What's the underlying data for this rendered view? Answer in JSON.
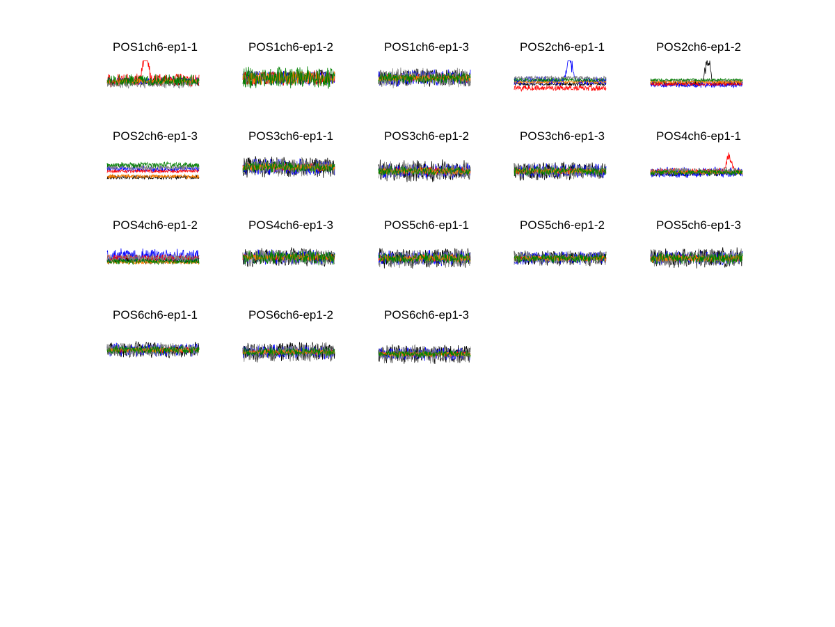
{
  "chart_data": {
    "type": "line",
    "series_colors": [
      "#000000",
      "#0000ff",
      "#ff0000",
      "#808080",
      "#ff8000",
      "#008000"
    ],
    "axes_visible": false,
    "grid": false,
    "legend": "none",
    "panels": [
      {
        "title": "POS1ch6-ep1-1",
        "baselines": [
          0.55,
          0.52,
          0.5,
          0.58,
          0.53,
          0.5
        ],
        "noise": [
          0.12,
          0.1,
          0.18,
          0.14,
          0.06,
          0.16
        ],
        "spike": {
          "series": 2,
          "at": 0.42,
          "height": 0.9
        }
      },
      {
        "title": "POS1ch6-ep1-2",
        "baselines": [
          0.45,
          0.45,
          0.45,
          0.45,
          0.45,
          0.45
        ],
        "noise": [
          0.22,
          0.2,
          0.2,
          0.2,
          0.2,
          0.3
        ],
        "spike": null
      },
      {
        "title": "POS1ch6-ep1-3",
        "baselines": [
          0.45,
          0.45,
          0.45,
          0.45,
          0.45,
          0.45
        ],
        "noise": [
          0.25,
          0.22,
          0.12,
          0.28,
          0.1,
          0.15
        ],
        "spike": null
      },
      {
        "title": "POS2ch6-ep1-1",
        "baselines": [
          0.6,
          0.52,
          0.7,
          0.45,
          0.55,
          0.5
        ],
        "noise": [
          0.05,
          0.12,
          0.08,
          0.06,
          0.04,
          0.05
        ],
        "spike": {
          "series": 1,
          "at": 0.6,
          "height": 0.8
        }
      },
      {
        "title": "POS2ch6-ep1-2",
        "baselines": [
          0.58,
          0.62,
          0.6,
          0.52,
          0.55,
          0.5
        ],
        "noise": [
          0.08,
          0.08,
          0.05,
          0.05,
          0.04,
          0.04
        ],
        "spike": {
          "series": 0,
          "at": 0.62,
          "height": 0.85
        }
      },
      {
        "title": "POS2ch6-ep1-3",
        "baselines": [
          0.7,
          0.5,
          0.55,
          0.45,
          0.68,
          0.4
        ],
        "noise": [
          0.06,
          0.08,
          0.05,
          0.1,
          0.06,
          0.08
        ],
        "spike": null
      },
      {
        "title": "POS3ch6-ep1-1",
        "baselines": [
          0.45,
          0.45,
          0.45,
          0.45,
          0.45,
          0.45
        ],
        "noise": [
          0.3,
          0.22,
          0.12,
          0.25,
          0.1,
          0.15
        ],
        "spike": null
      },
      {
        "title": "POS3ch6-ep1-2",
        "baselines": [
          0.55,
          0.55,
          0.55,
          0.55,
          0.55,
          0.55
        ],
        "noise": [
          0.3,
          0.2,
          0.12,
          0.25,
          0.1,
          0.12
        ],
        "spike": null
      },
      {
        "title": "POS3ch6-ep1-3",
        "baselines": [
          0.55,
          0.55,
          0.55,
          0.55,
          0.55,
          0.55
        ],
        "noise": [
          0.25,
          0.2,
          0.1,
          0.22,
          0.08,
          0.12
        ],
        "spike": null
      },
      {
        "title": "POS4ch6-ep1-1",
        "baselines": [
          0.6,
          0.58,
          0.55,
          0.55,
          0.58,
          0.58
        ],
        "noise": [
          0.1,
          0.15,
          0.08,
          0.1,
          0.05,
          0.08
        ],
        "spike": {
          "series": 2,
          "at": 0.85,
          "height": 0.5
        }
      },
      {
        "title": "POS4ch6-ep1-2",
        "baselines": [
          0.55,
          0.45,
          0.5,
          0.5,
          0.6,
          0.58
        ],
        "noise": [
          0.12,
          0.2,
          0.1,
          0.12,
          0.05,
          0.08
        ],
        "spike": null
      },
      {
        "title": "POS4ch6-ep1-3",
        "baselines": [
          0.48,
          0.48,
          0.48,
          0.48,
          0.48,
          0.48
        ],
        "noise": [
          0.25,
          0.2,
          0.1,
          0.22,
          0.1,
          0.2
        ],
        "spike": null
      },
      {
        "title": "POS5ch6-ep1-1",
        "baselines": [
          0.5,
          0.5,
          0.5,
          0.5,
          0.5,
          0.5
        ],
        "noise": [
          0.28,
          0.22,
          0.1,
          0.25,
          0.1,
          0.15
        ],
        "spike": null
      },
      {
        "title": "POS5ch6-ep1-2",
        "baselines": [
          0.5,
          0.5,
          0.5,
          0.5,
          0.5,
          0.5
        ],
        "noise": [
          0.2,
          0.18,
          0.08,
          0.2,
          0.08,
          0.12
        ],
        "spike": null
      },
      {
        "title": "POS5ch6-ep1-3",
        "baselines": [
          0.5,
          0.5,
          0.5,
          0.5,
          0.5,
          0.5
        ],
        "noise": [
          0.28,
          0.2,
          0.1,
          0.25,
          0.1,
          0.15
        ],
        "spike": null
      },
      {
        "title": "POS6ch6-ep1-1",
        "baselines": [
          0.55,
          0.55,
          0.55,
          0.55,
          0.55,
          0.55
        ],
        "noise": [
          0.22,
          0.18,
          0.08,
          0.2,
          0.06,
          0.12
        ],
        "spike": null
      },
      {
        "title": "POS6ch6-ep1-2",
        "baselines": [
          0.6,
          0.6,
          0.6,
          0.6,
          0.6,
          0.6
        ],
        "noise": [
          0.28,
          0.2,
          0.08,
          0.25,
          0.06,
          0.12
        ],
        "spike": null
      },
      {
        "title": "POS6ch6-ep1-3",
        "baselines": [
          0.65,
          0.65,
          0.65,
          0.65,
          0.65,
          0.65
        ],
        "noise": [
          0.25,
          0.18,
          0.08,
          0.25,
          0.06,
          0.1
        ],
        "spike": null
      }
    ]
  }
}
